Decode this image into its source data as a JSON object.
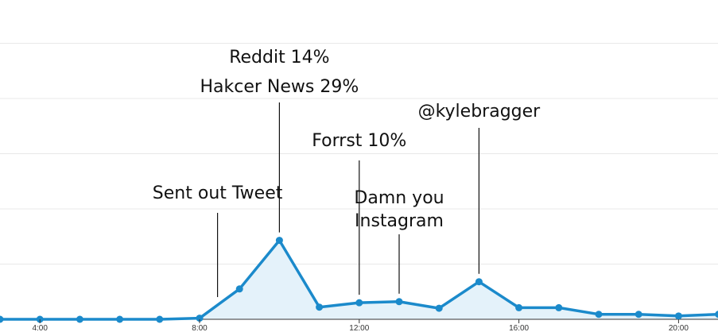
{
  "chart_data": {
    "type": "area",
    "title": "",
    "xlabel": "",
    "ylabel": "",
    "grid": true,
    "xlim": [
      3,
      21
    ],
    "ylim": [
      0,
      5
    ],
    "x_ticks": [
      {
        "x": 4,
        "label": "4:00"
      },
      {
        "x": 8,
        "label": "8:00"
      },
      {
        "x": 12,
        "label": "12:00"
      },
      {
        "x": 16,
        "label": "16:00"
      },
      {
        "x": 20,
        "label": "20:00"
      }
    ],
    "series": [
      {
        "x": [
          3,
          4,
          5,
          6,
          7,
          8,
          9,
          10,
          11,
          12,
          13,
          14,
          15,
          16,
          17,
          18,
          19,
          20,
          21
        ],
        "values": [
          0.0,
          0.0,
          0.0,
          0.0,
          0.0,
          0.02,
          0.55,
          1.43,
          0.22,
          0.3,
          0.32,
          0.2,
          0.68,
          0.21,
          0.21,
          0.09,
          0.09,
          0.06,
          0.09
        ]
      }
    ],
    "annotations": [
      {
        "x": 8.45,
        "lines": [
          "Sent out Tweet"
        ]
      },
      {
        "x": 10,
        "lines": [
          "Reddit 14%",
          "Hakcer News 29%"
        ]
      },
      {
        "x": 12,
        "lines": [
          "Forrst 10%"
        ]
      },
      {
        "x": 13,
        "lines": [
          "Damn you",
          "Instagram"
        ]
      },
      {
        "x": 15,
        "lines": [
          "@kylebragger"
        ]
      }
    ],
    "colors": {
      "line": "#1b8acb",
      "fill": "#e4f2fa",
      "grid": "#e8e8e8"
    }
  }
}
